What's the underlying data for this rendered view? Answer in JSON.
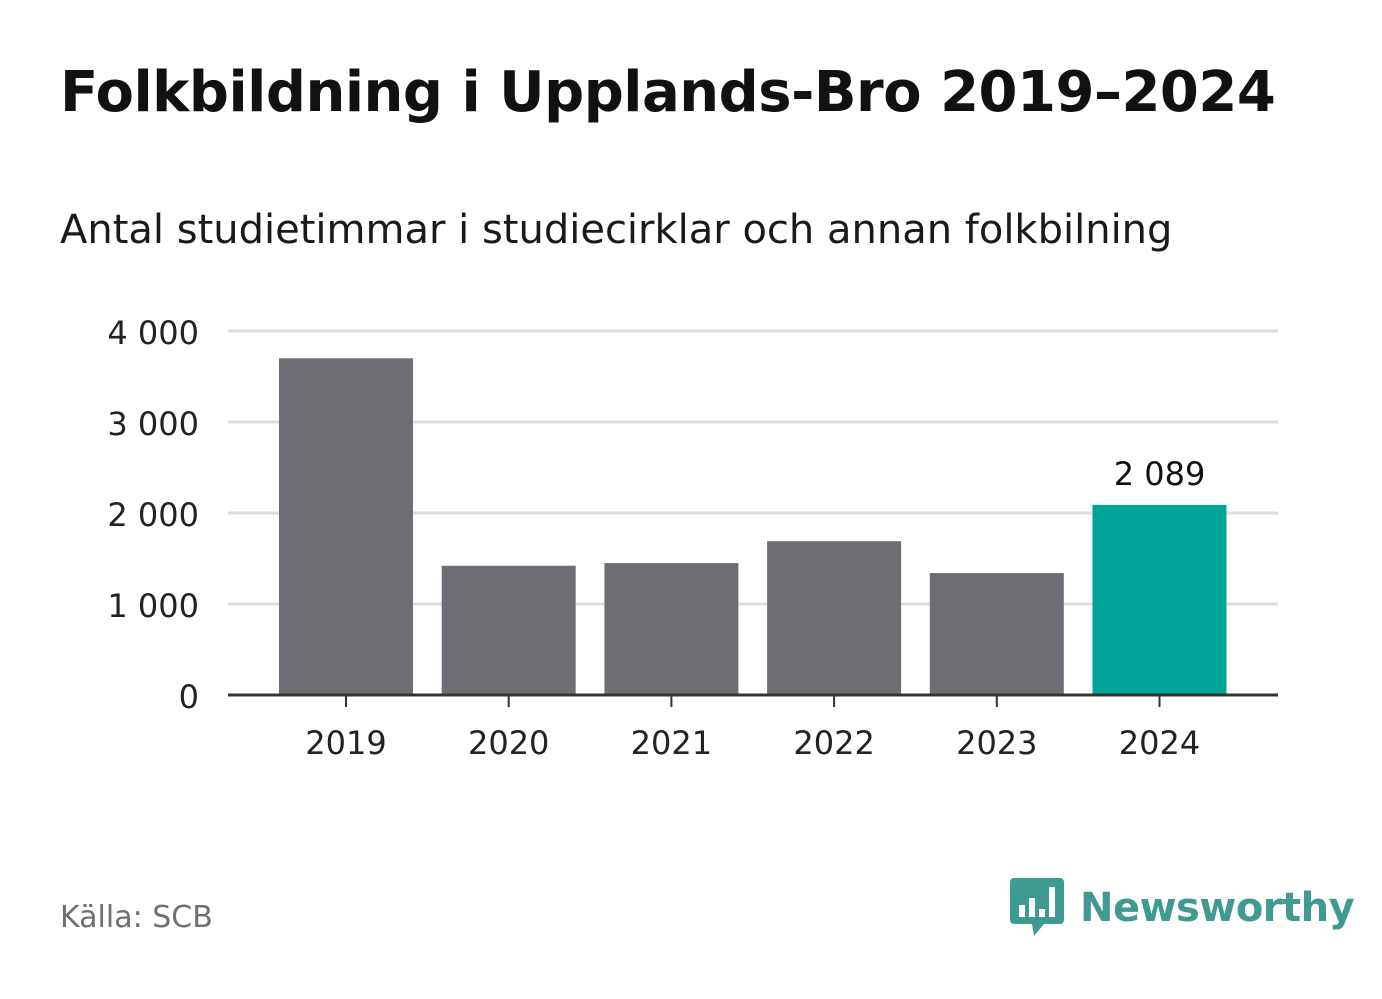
{
  "title": "Folkbildning i Upplands-Bro 2019–2024",
  "subtitle": "Antal studietimmar i studiecirklar och annan folkbilning",
  "source": "Källa: SCB",
  "brand": {
    "name": "Newsworthy",
    "icon": "newsworthy-logo-icon",
    "color": "#3f9a92"
  },
  "chart_data": {
    "type": "bar",
    "categories": [
      "2019",
      "2020",
      "2021",
      "2022",
      "2023",
      "2024"
    ],
    "values": [
      3700,
      1420,
      1450,
      1690,
      1340,
      2089
    ],
    "ylim": [
      0,
      4000
    ],
    "yticks": [
      0,
      1000,
      2000,
      3000,
      4000
    ],
    "ytick_labels": [
      "0",
      "1 000",
      "2 000",
      "3 000",
      "4 000"
    ],
    "grid": true,
    "colors": {
      "default": "#6e6d73",
      "highlight": "#00a59a"
    },
    "highlight_index": 5,
    "data_labels": [
      {
        "index": 5,
        "text": "2 089"
      }
    ]
  }
}
